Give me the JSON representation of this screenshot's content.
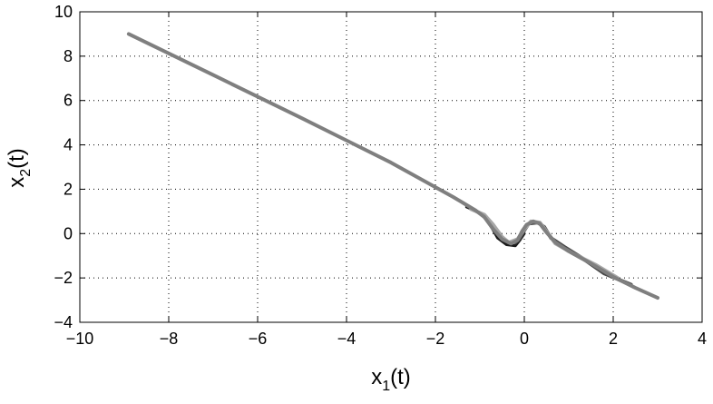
{
  "chart_data": {
    "type": "line",
    "xlabel": {
      "base": "x",
      "sub": "1",
      "suffix": "(t)"
    },
    "ylabel": {
      "base": "x",
      "sub": "2",
      "suffix": "(t)"
    },
    "xlim": [
      -10,
      4
    ],
    "ylim": [
      -4,
      10
    ],
    "xticks": [
      -10,
      -8,
      -6,
      -4,
      -2,
      0,
      2,
      4
    ],
    "yticks": [
      -4,
      -2,
      0,
      2,
      4,
      6,
      8,
      10
    ],
    "xtick_labels": [
      "−10",
      "−8",
      "−6",
      "−4",
      "−2",
      "0",
      "2",
      "4"
    ],
    "ytick_labels": [
      "−4",
      "−2",
      "0",
      "2",
      "4",
      "6",
      "8",
      "10"
    ],
    "grid": true,
    "series": [
      {
        "color": "#1a1a1a",
        "width": 3,
        "points": [
          [
            -1.3,
            1.2
          ],
          [
            -1.0,
            0.95
          ],
          [
            -0.8,
            0.5
          ],
          [
            -0.6,
            -0.2
          ],
          [
            -0.4,
            -0.5
          ],
          [
            -0.2,
            -0.55
          ],
          [
            -0.1,
            -0.3
          ],
          [
            0.0,
            0.0
          ]
        ]
      },
      {
        "color": "#4a4a4a",
        "width": 4,
        "points": [
          [
            -0.2,
            -0.4
          ],
          [
            -0.1,
            -0.2
          ],
          [
            0.0,
            0.15
          ],
          [
            0.1,
            0.45
          ],
          [
            0.3,
            0.5
          ],
          [
            0.45,
            0.3
          ],
          [
            0.6,
            -0.2
          ],
          [
            0.9,
            -0.6
          ],
          [
            1.3,
            -1.1
          ],
          [
            1.8,
            -1.8
          ],
          [
            2.4,
            -2.3
          ]
        ]
      },
      {
        "color": "#a8a8a8",
        "width": 4,
        "points": [
          [
            -1.2,
            1.1
          ],
          [
            -0.9,
            0.85
          ],
          [
            -0.7,
            0.4
          ],
          [
            -0.5,
            -0.15
          ],
          [
            -0.35,
            -0.4
          ],
          [
            -0.15,
            -0.25
          ],
          [
            0.0,
            0.2
          ],
          [
            0.15,
            0.55
          ],
          [
            0.35,
            0.5
          ],
          [
            0.5,
            0.1
          ],
          [
            0.7,
            -0.45
          ],
          [
            1.1,
            -0.9
          ],
          [
            1.6,
            -1.4
          ],
          [
            2.1,
            -2.0
          ]
        ]
      },
      {
        "color": "#7f7f7f",
        "width": 4,
        "points": [
          [
            -8.9,
            9.0
          ],
          [
            -7.0,
            7.15
          ],
          [
            -5.0,
            5.2
          ],
          [
            -3.0,
            3.2
          ],
          [
            -1.6,
            1.65
          ],
          [
            -1.1,
            1.05
          ],
          [
            -0.9,
            0.75
          ],
          [
            -0.7,
            0.2
          ],
          [
            -0.5,
            -0.25
          ],
          [
            -0.3,
            -0.45
          ],
          [
            -0.15,
            -0.3
          ],
          [
            -0.05,
            0.1
          ],
          [
            0.05,
            0.4
          ],
          [
            0.2,
            0.55
          ],
          [
            0.35,
            0.45
          ],
          [
            0.5,
            0.05
          ],
          [
            0.7,
            -0.4
          ],
          [
            1.0,
            -0.8
          ],
          [
            1.5,
            -1.35
          ],
          [
            2.0,
            -1.95
          ],
          [
            2.5,
            -2.45
          ],
          [
            3.0,
            -2.9
          ]
        ]
      }
    ]
  }
}
